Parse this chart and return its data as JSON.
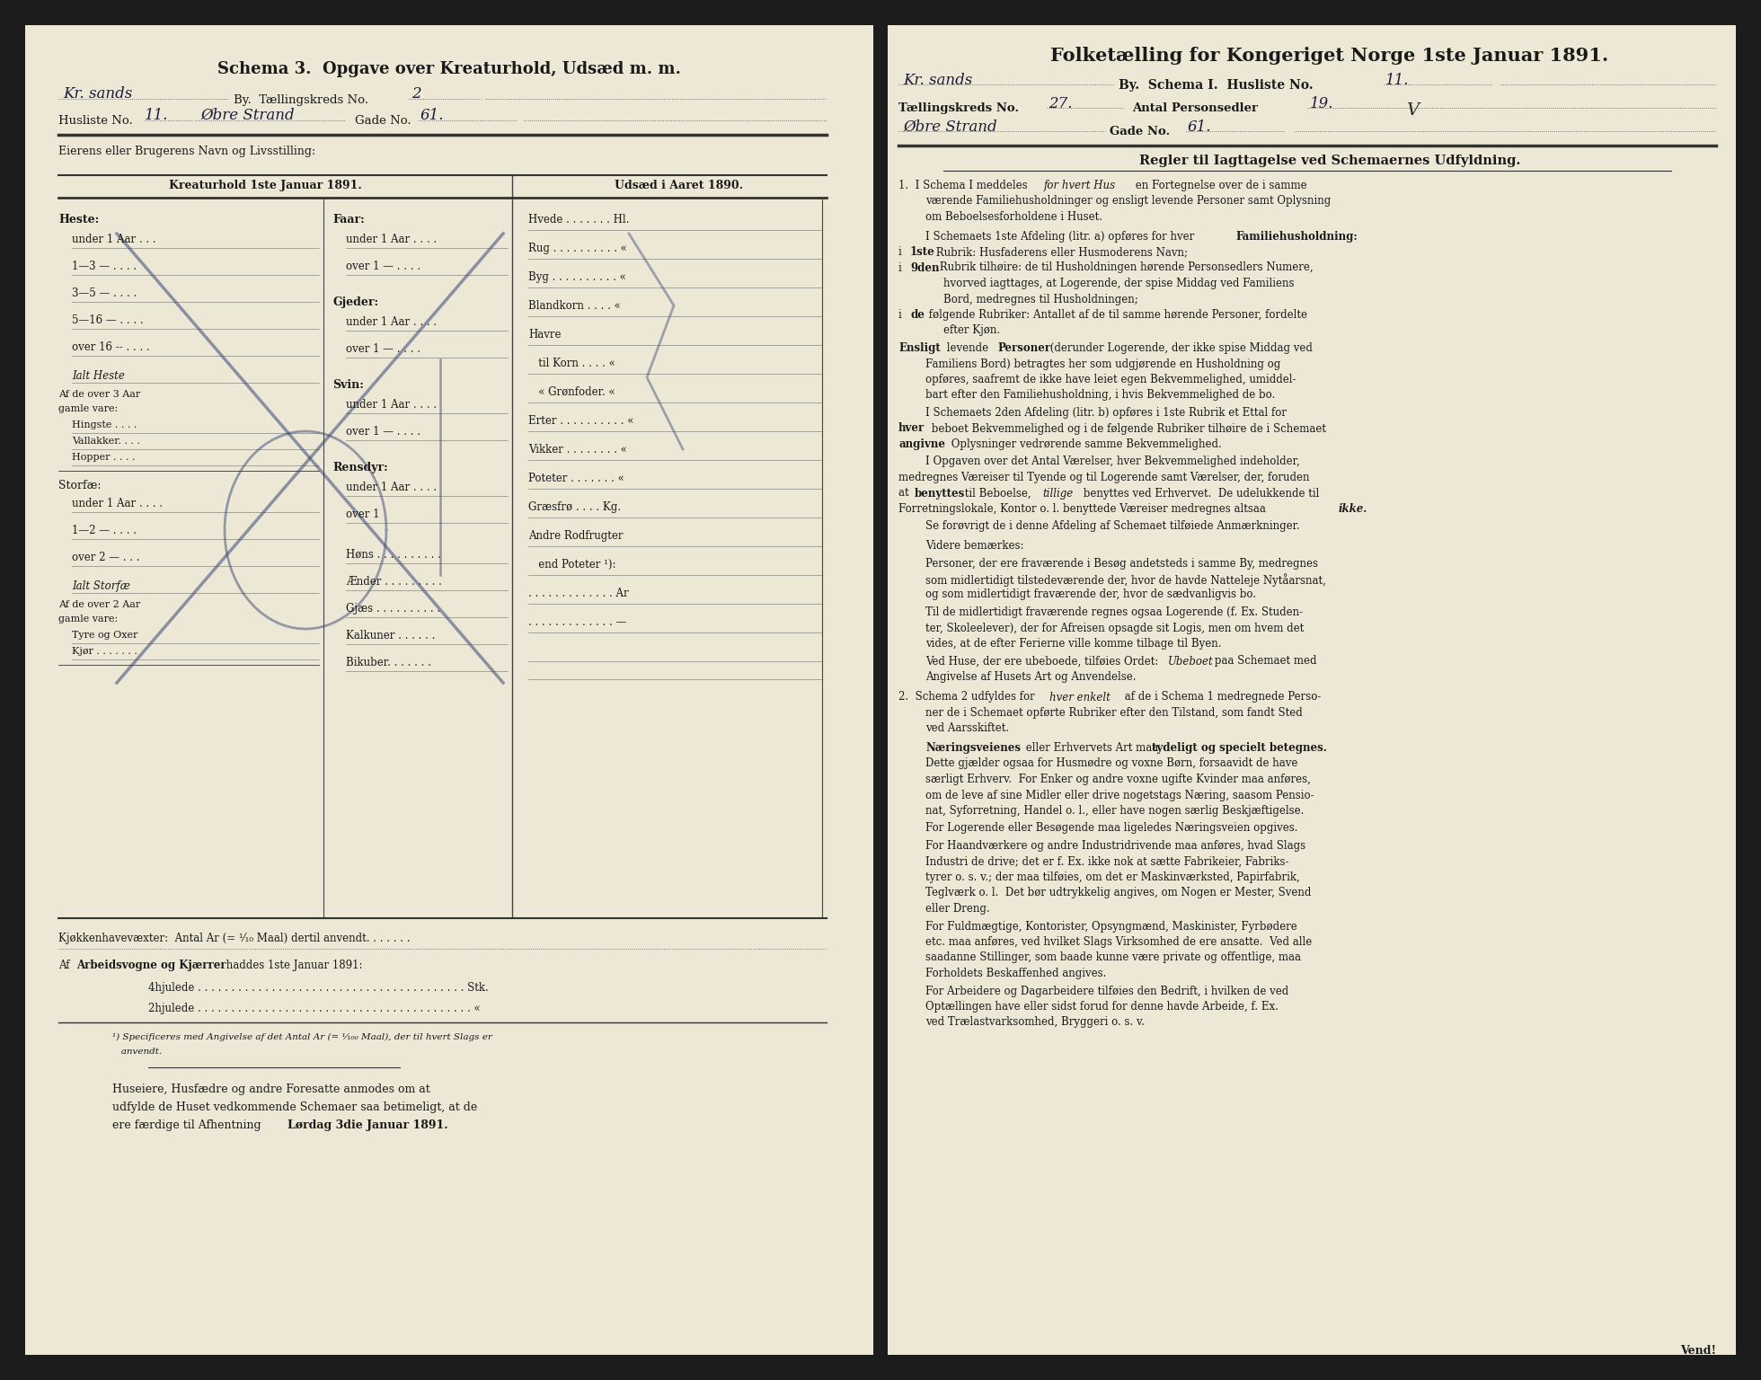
{
  "page_bg": "#ede8d5",
  "dark_bg": "#1c1c1c",
  "text_color": "#1a1a1a",
  "hw_color": "#2a2a4a",
  "left_page": {
    "title": "Schema 3.  Opgave over Kreaturhold, Udsæd m. m.",
    "hw_city": "Kr. sands",
    "hw_treds": "2",
    "hw_husliste": "11.",
    "hw_gade_name": "Øbre Strand",
    "hw_gade_no": "61.",
    "heste_rows": [
      "under 1 Aar . . .",
      "1—3 — . . . .",
      "3—5 — . . . .",
      "5—16 — . . . .",
      "over 16 -- . . . ."
    ],
    "faar_rows": [
      "under 1 Aar . . . .",
      "over 1 — . . . ."
    ],
    "gjeder_rows": [
      "under 1 Aar . . . .",
      "over 1 — . . . ."
    ],
    "svin_rows": [
      "under 1 Aar . . . .",
      "over 1 — . . . ."
    ],
    "rensdyr_rows": [
      "under 1 Aar . . . .",
      "over 1"
    ],
    "storfe_rows": [
      "under 1 Aar . . . .",
      "1—2 — . . . .",
      "over 2 — . . ."
    ],
    "udsaed_rows": [
      "Hvede . . . . . . . Hl.",
      "Rug . . . . . . . . . . «",
      "Byg . . . . . . . . . . «",
      "Blandkorn . . . . «",
      "Havre",
      "   til Korn . . . . «",
      "   « Grønfoder. «",
      "Erter . . . . . . . . . . «",
      "Vikker . . . . . . . . «",
      "Poteter . . . . . . . «",
      "Græsfrø . . . . Kg.",
      "Andre Rodfrugter",
      "   end Poteter ¹):",
      ". . . . . . . . . . . . . Ar",
      ". . . . . . . . . . . . . —"
    ]
  },
  "right_page": {
    "title": "Folketælling for Kongeriget Norge 1ste Januar 1891.",
    "hw_city": "Kr. sands",
    "hw_husliste": "11.",
    "hw_treds": "27.",
    "hw_persons": "19.",
    "hw_gade_name": "Øbre Strand",
    "hw_gade_no": "61."
  }
}
